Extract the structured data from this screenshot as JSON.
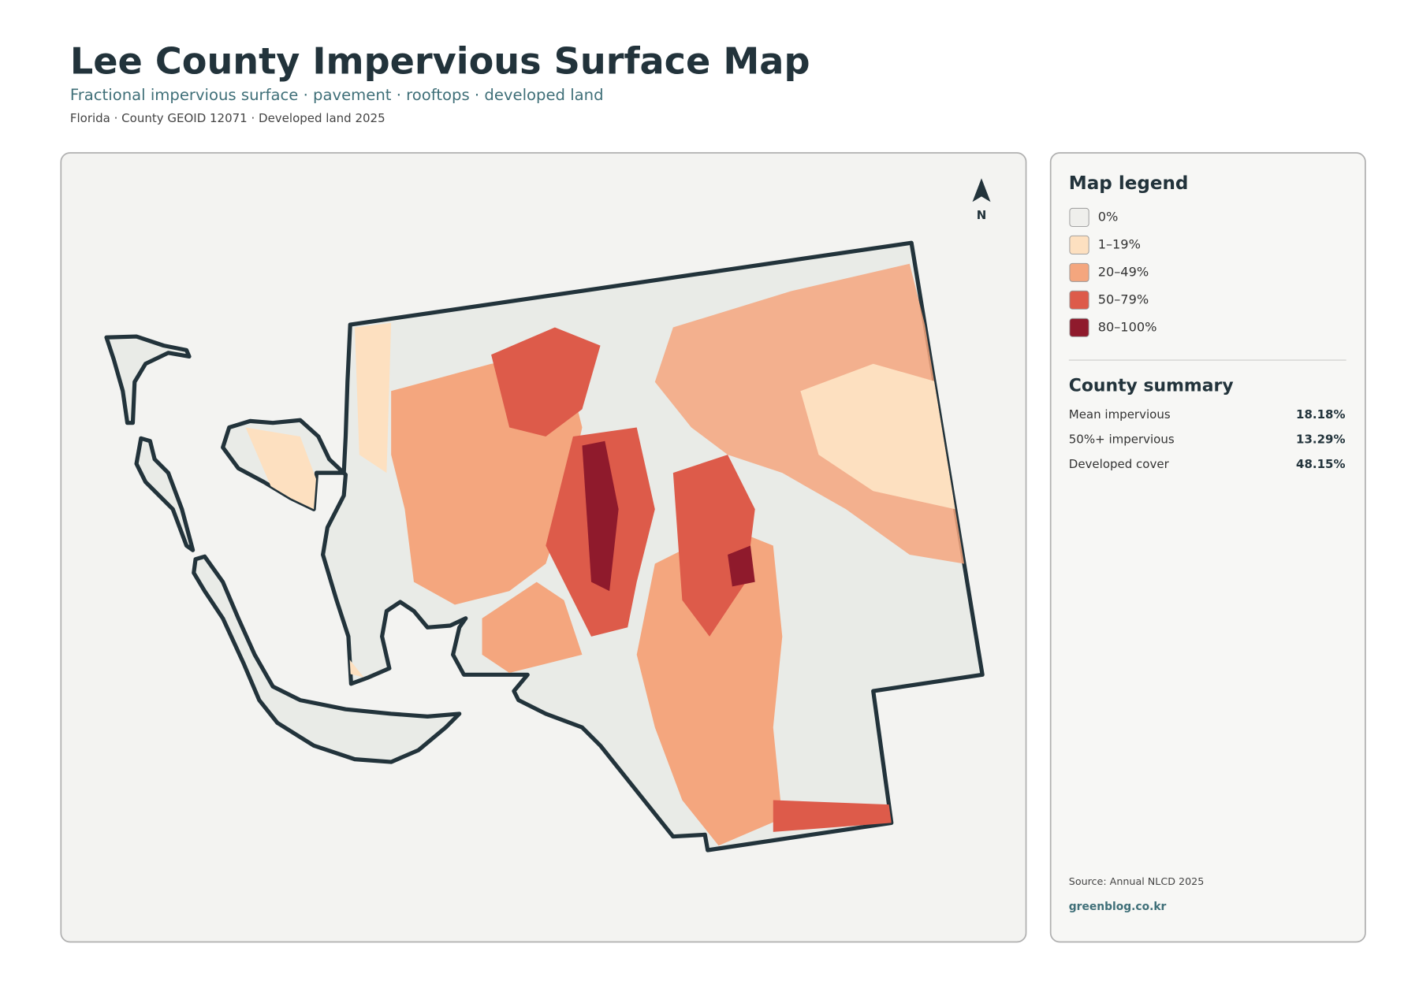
{
  "header": {
    "title": "Lee County Impervious Surface Map",
    "subtitle": "Fractional impervious surface · pavement · rooftops · developed land",
    "meta": "Florida · County GEOID 12071 · Developed land 2025"
  },
  "map": {
    "north_label": "N"
  },
  "legend": {
    "title": "Map legend",
    "items": [
      {
        "label": "0%",
        "color": "#efefec"
      },
      {
        "label": "1–19%",
        "color": "#fde0c0"
      },
      {
        "label": "20–49%",
        "color": "#f4a67e"
      },
      {
        "label": "50–79%",
        "color": "#dd5b4a"
      },
      {
        "label": "80–100%",
        "color": "#8f1a2c"
      }
    ]
  },
  "summary": {
    "title": "County summary",
    "rows": [
      {
        "label": "Mean impervious",
        "value": "18.18%"
      },
      {
        "label": "50%+ impervious",
        "value": "13.29%"
      },
      {
        "label": "Developed cover",
        "value": "48.15%"
      }
    ]
  },
  "footer": {
    "source": "Source: Annual NLCD 2025",
    "site": "greenblog.co.kr"
  }
}
